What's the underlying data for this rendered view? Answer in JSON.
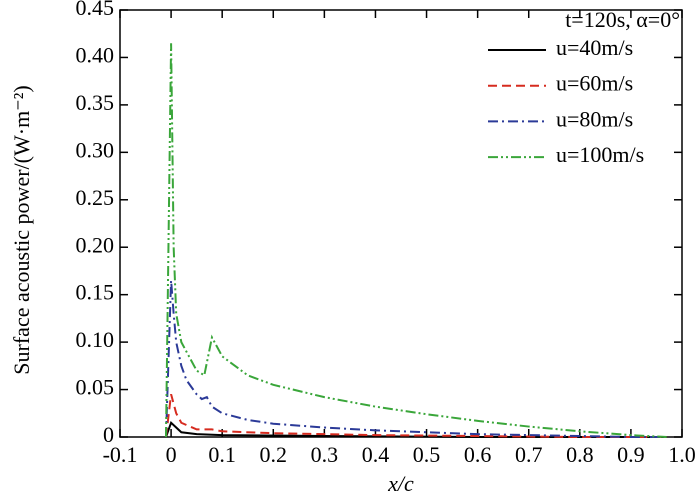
{
  "chart_data": {
    "type": "line",
    "xlabel": "x/c",
    "ylabel": "Surface acoustic power/(W·m⁻²)",
    "legend_title": "t=120s, α=0°",
    "legend": "upper right",
    "grid": false,
    "xlim": [
      -0.1,
      1.0
    ],
    "xticks": [
      -0.1,
      0,
      0.1,
      0.2,
      0.3,
      0.4,
      0.5,
      0.6,
      0.7,
      0.8,
      0.9,
      {
        "value": 1,
        "label": "1.0"
      }
    ],
    "ylim": [
      0,
      0.45
    ],
    "yticks": [
      0,
      0.05,
      {
        "value": 0.1,
        "label": "0.10"
      },
      0.15,
      {
        "value": 0.2,
        "label": "0.20"
      },
      0.25,
      {
        "value": 0.3,
        "label": "0.30"
      },
      0.35,
      {
        "value": 0.4,
        "label": "0.40"
      },
      0.45
    ],
    "series": [
      {
        "name": "u=40m/s",
        "color": "#000000",
        "dash": "solid",
        "x": [
          -0.01,
          0,
          0.02,
          0.05,
          0.1,
          0.3,
          0.6,
          0.97
        ],
        "values": [
          0,
          0.015,
          0.005,
          0.003,
          0.002,
          0.001,
          0,
          0
        ]
      },
      {
        "name": "u=60m/s",
        "color": "#d62b1f",
        "dash": "dashed",
        "x": [
          -0.01,
          0,
          0.01,
          0.02,
          0.05,
          0.08,
          0.1,
          0.2,
          0.4,
          0.6,
          0.8,
          0.97
        ],
        "values": [
          0,
          0.045,
          0.025,
          0.015,
          0.008,
          0.008,
          0.006,
          0.004,
          0.002,
          0.001,
          0,
          0
        ]
      },
      {
        "name": "u=80m/s",
        "color": "#2b3a98",
        "dash": "dash-dot",
        "x": [
          -0.01,
          0,
          0.005,
          0.01,
          0.02,
          0.03,
          0.05,
          0.06,
          0.07,
          0.08,
          0.1,
          0.15,
          0.2,
          0.3,
          0.4,
          0.5,
          0.6,
          0.7,
          0.8,
          0.9,
          0.97
        ],
        "values": [
          0,
          0.165,
          0.13,
          0.1,
          0.075,
          0.06,
          0.045,
          0.04,
          0.042,
          0.032,
          0.025,
          0.018,
          0.014,
          0.01,
          0.007,
          0.005,
          0.003,
          0.002,
          0.001,
          0,
          0
        ]
      },
      {
        "name": "u=100m/s",
        "color": "#3aa63a",
        "dash": "dash-dot-dot",
        "x": [
          -0.01,
          0,
          0.005,
          0.01,
          0.02,
          0.03,
          0.05,
          0.065,
          0.08,
          0.1,
          0.15,
          0.2,
          0.3,
          0.4,
          0.5,
          0.6,
          0.7,
          0.8,
          0.9,
          0.97
        ],
        "values": [
          0,
          0.415,
          0.2,
          0.13,
          0.1,
          0.09,
          0.07,
          0.065,
          0.105,
          0.085,
          0.065,
          0.055,
          0.042,
          0.032,
          0.024,
          0.017,
          0.011,
          0.006,
          0.002,
          0
        ]
      }
    ]
  }
}
